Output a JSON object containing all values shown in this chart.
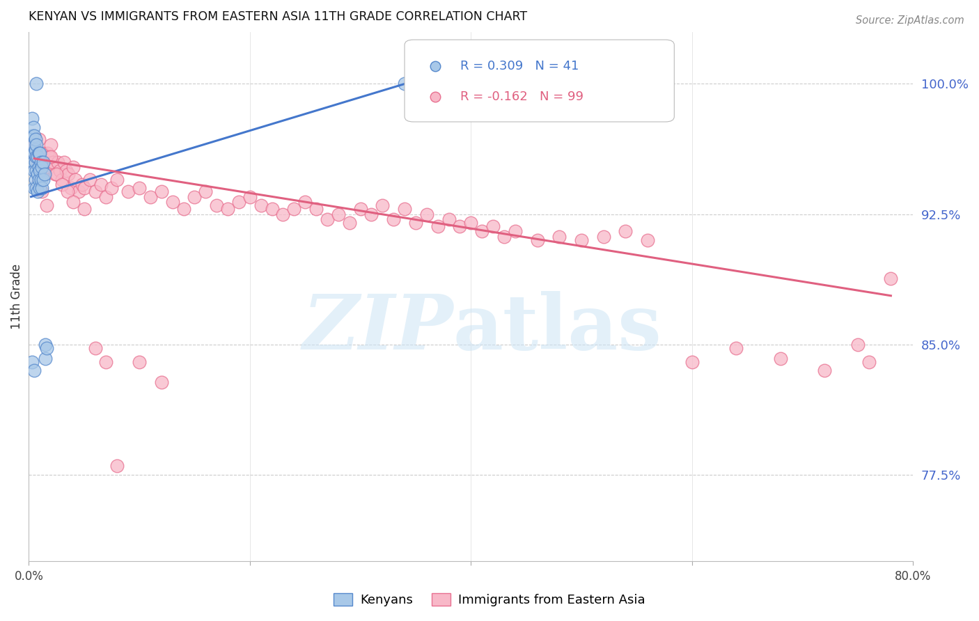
{
  "title": "KENYAN VS IMMIGRANTS FROM EASTERN ASIA 11TH GRADE CORRELATION CHART",
  "source": "Source: ZipAtlas.com",
  "ylabel": "11th Grade",
  "right_yticks": [
    "100.0%",
    "92.5%",
    "85.0%",
    "77.5%"
  ],
  "right_ytick_vals": [
    1.0,
    0.925,
    0.85,
    0.775
  ],
  "legend_blue_r": "R = 0.309",
  "legend_blue_n": "N = 41",
  "legend_pink_r": "R = -0.162",
  "legend_pink_n": "N = 99",
  "blue_scatter_color": "#a8c8e8",
  "blue_edge_color": "#5588cc",
  "pink_scatter_color": "#f8b8c8",
  "pink_edge_color": "#e87090",
  "blue_line_color": "#4477cc",
  "pink_line_color": "#e06080",
  "grid_color": "#cccccc",
  "xmin": 0.0,
  "xmax": 0.8,
  "ymin": 0.725,
  "ymax": 1.03,
  "blue_scatter_x": [
    0.002,
    0.003,
    0.003,
    0.004,
    0.004,
    0.004,
    0.005,
    0.005,
    0.005,
    0.005,
    0.006,
    0.006,
    0.006,
    0.006,
    0.007,
    0.007,
    0.007,
    0.007,
    0.008,
    0.008,
    0.008,
    0.009,
    0.009,
    0.009,
    0.01,
    0.01,
    0.01,
    0.011,
    0.011,
    0.012,
    0.012,
    0.013,
    0.013,
    0.014,
    0.015,
    0.015,
    0.016,
    0.34,
    0.003,
    0.005,
    0.007
  ],
  "blue_scatter_y": [
    0.96,
    0.97,
    0.98,
    0.955,
    0.965,
    0.975,
    0.94,
    0.95,
    0.96,
    0.97,
    0.945,
    0.955,
    0.962,
    0.968,
    0.94,
    0.95,
    0.958,
    0.965,
    0.938,
    0.948,
    0.958,
    0.945,
    0.952,
    0.96,
    0.94,
    0.95,
    0.96,
    0.945,
    0.955,
    0.94,
    0.952,
    0.945,
    0.955,
    0.948,
    0.85,
    0.842,
    0.848,
    1.0,
    0.84,
    0.835,
    1.0
  ],
  "pink_scatter_x": [
    0.005,
    0.006,
    0.007,
    0.008,
    0.009,
    0.01,
    0.011,
    0.012,
    0.013,
    0.014,
    0.015,
    0.016,
    0.017,
    0.018,
    0.019,
    0.02,
    0.022,
    0.024,
    0.026,
    0.028,
    0.03,
    0.032,
    0.034,
    0.036,
    0.038,
    0.04,
    0.042,
    0.045,
    0.048,
    0.05,
    0.055,
    0.06,
    0.065,
    0.07,
    0.075,
    0.08,
    0.09,
    0.1,
    0.11,
    0.12,
    0.13,
    0.14,
    0.15,
    0.16,
    0.17,
    0.18,
    0.19,
    0.2,
    0.21,
    0.22,
    0.23,
    0.24,
    0.25,
    0.26,
    0.27,
    0.28,
    0.29,
    0.3,
    0.31,
    0.32,
    0.33,
    0.34,
    0.35,
    0.36,
    0.37,
    0.38,
    0.39,
    0.4,
    0.41,
    0.42,
    0.43,
    0.44,
    0.46,
    0.48,
    0.5,
    0.52,
    0.54,
    0.56,
    0.6,
    0.64,
    0.68,
    0.72,
    0.75,
    0.76,
    0.78,
    0.008,
    0.012,
    0.016,
    0.02,
    0.025,
    0.03,
    0.035,
    0.04,
    0.05,
    0.06,
    0.07,
    0.08,
    0.1,
    0.12
  ],
  "pink_scatter_y": [
    0.965,
    0.958,
    0.96,
    0.955,
    0.968,
    0.95,
    0.958,
    0.952,
    0.96,
    0.955,
    0.948,
    0.955,
    0.96,
    0.952,
    0.958,
    0.965,
    0.955,
    0.948,
    0.955,
    0.95,
    0.945,
    0.955,
    0.95,
    0.948,
    0.94,
    0.952,
    0.945,
    0.938,
    0.942,
    0.94,
    0.945,
    0.938,
    0.942,
    0.935,
    0.94,
    0.945,
    0.938,
    0.94,
    0.935,
    0.938,
    0.932,
    0.928,
    0.935,
    0.938,
    0.93,
    0.928,
    0.932,
    0.935,
    0.93,
    0.928,
    0.925,
    0.928,
    0.932,
    0.928,
    0.922,
    0.925,
    0.92,
    0.928,
    0.925,
    0.93,
    0.922,
    0.928,
    0.92,
    0.925,
    0.918,
    0.922,
    0.918,
    0.92,
    0.915,
    0.918,
    0.912,
    0.915,
    0.91,
    0.912,
    0.91,
    0.912,
    0.915,
    0.91,
    0.84,
    0.848,
    0.842,
    0.835,
    0.85,
    0.84,
    0.888,
    0.942,
    0.938,
    0.93,
    0.958,
    0.948,
    0.942,
    0.938,
    0.932,
    0.928,
    0.848,
    0.84,
    0.78,
    0.84,
    0.828
  ],
  "blue_line_x0": 0.002,
  "blue_line_x1": 0.34,
  "blue_line_y0": 0.935,
  "blue_line_y1": 1.0,
  "pink_line_x0": 0.005,
  "pink_line_x1": 0.78,
  "pink_line_y0": 0.957,
  "pink_line_y1": 0.878
}
